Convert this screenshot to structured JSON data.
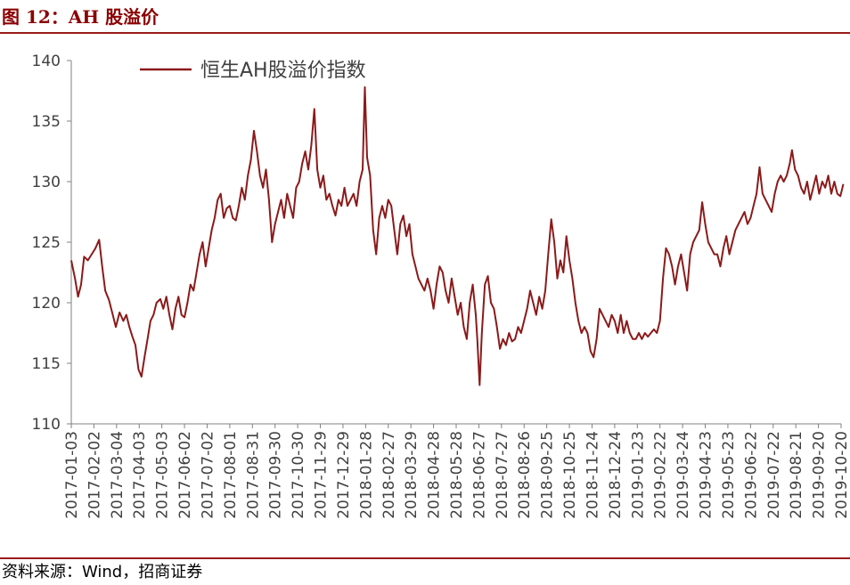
{
  "header": {
    "title": "图 12：AH 股溢价"
  },
  "footer": {
    "source": "资料来源：Wind，招商证券"
  },
  "colors": {
    "line": "#8b1a1a",
    "rule": "#9b1b1b",
    "title": "#8b0000",
    "axis": "#808080"
  },
  "chart_data": {
    "type": "line",
    "title": "",
    "xlabel": "",
    "ylabel": "",
    "ylim": [
      110,
      140
    ],
    "yticks": [
      110,
      115,
      120,
      125,
      130,
      135,
      140
    ],
    "grid": false,
    "legend": "top",
    "xticks": [
      "2017-01-03",
      "2017-02-02",
      "2017-03-04",
      "2017-04-03",
      "2017-05-03",
      "2017-06-02",
      "2017-07-02",
      "2017-08-01",
      "2017-08-31",
      "2017-09-30",
      "2017-10-30",
      "2017-11-29",
      "2017-12-29",
      "2018-01-28",
      "2018-02-27",
      "2018-03-29",
      "2018-04-28",
      "2018-05-28",
      "2018-06-27",
      "2018-07-27",
      "2018-08-26",
      "2018-09-25",
      "2018-10-25",
      "2018-11-24",
      "2018-12-24",
      "2019-01-23",
      "2019-02-22",
      "2019-03-24",
      "2019-04-23",
      "2019-05-23",
      "2019-06-22",
      "2019-07-22",
      "2019-08-21",
      "2019-09-20",
      "2019-10-20"
    ],
    "series": [
      {
        "name": "恒生AH股溢价指数",
        "points": [
          [
            "2017-01-03",
            123.5
          ],
          [
            "2017-01-08",
            122.0
          ],
          [
            "2017-01-12",
            120.5
          ],
          [
            "2017-01-16",
            121.5
          ],
          [
            "2017-01-20",
            123.8
          ],
          [
            "2017-01-25",
            123.5
          ],
          [
            "2017-01-30",
            124.0
          ],
          [
            "2017-02-04",
            124.5
          ],
          [
            "2017-02-09",
            125.2
          ],
          [
            "2017-02-13",
            123.0
          ],
          [
            "2017-02-17",
            121.0
          ],
          [
            "2017-02-22",
            120.2
          ],
          [
            "2017-02-27",
            119.0
          ],
          [
            "2017-03-03",
            118.0
          ],
          [
            "2017-03-08",
            119.2
          ],
          [
            "2017-03-13",
            118.5
          ],
          [
            "2017-03-17",
            119.0
          ],
          [
            "2017-03-21",
            118.0
          ],
          [
            "2017-03-25",
            117.2
          ],
          [
            "2017-03-29",
            116.5
          ],
          [
            "2017-04-02",
            114.5
          ],
          [
            "2017-04-06",
            113.9
          ],
          [
            "2017-04-10",
            115.5
          ],
          [
            "2017-04-14",
            117.0
          ],
          [
            "2017-04-18",
            118.5
          ],
          [
            "2017-04-22",
            119.0
          ],
          [
            "2017-04-26",
            120.0
          ],
          [
            "2017-05-01",
            120.3
          ],
          [
            "2017-05-05",
            119.5
          ],
          [
            "2017-05-09",
            120.5
          ],
          [
            "2017-05-13",
            119.0
          ],
          [
            "2017-05-17",
            117.8
          ],
          [
            "2017-05-21",
            119.5
          ],
          [
            "2017-05-25",
            120.5
          ],
          [
            "2017-05-29",
            119.0
          ],
          [
            "2017-06-02",
            118.8
          ],
          [
            "2017-06-06",
            120.0
          ],
          [
            "2017-06-10",
            121.5
          ],
          [
            "2017-06-14",
            121.0
          ],
          [
            "2017-06-18",
            122.5
          ],
          [
            "2017-06-22",
            124.0
          ],
          [
            "2017-06-26",
            125.0
          ],
          [
            "2017-06-30",
            123.0
          ],
          [
            "2017-07-04",
            124.5
          ],
          [
            "2017-07-08",
            126.0
          ],
          [
            "2017-07-12",
            127.0
          ],
          [
            "2017-07-16",
            128.5
          ],
          [
            "2017-07-20",
            129.0
          ],
          [
            "2017-07-24",
            127.0
          ],
          [
            "2017-07-28",
            127.8
          ],
          [
            "2017-08-01",
            128.0
          ],
          [
            "2017-08-05",
            127.0
          ],
          [
            "2017-08-09",
            126.8
          ],
          [
            "2017-08-13",
            128.0
          ],
          [
            "2017-08-17",
            129.5
          ],
          [
            "2017-08-21",
            128.5
          ],
          [
            "2017-08-25",
            130.5
          ],
          [
            "2017-08-29",
            131.8
          ],
          [
            "2017-09-02",
            134.2
          ],
          [
            "2017-09-06",
            132.5
          ],
          [
            "2017-09-10",
            130.5
          ],
          [
            "2017-09-14",
            129.5
          ],
          [
            "2017-09-18",
            131.0
          ],
          [
            "2017-09-22",
            128.5
          ],
          [
            "2017-09-26",
            125.0
          ],
          [
            "2017-09-30",
            126.5
          ],
          [
            "2017-10-04",
            127.5
          ],
          [
            "2017-10-08",
            128.5
          ],
          [
            "2017-10-12",
            127.0
          ],
          [
            "2017-10-16",
            129.0
          ],
          [
            "2017-10-20",
            128.0
          ],
          [
            "2017-10-24",
            127.0
          ],
          [
            "2017-10-28",
            129.5
          ],
          [
            "2017-11-01",
            130.0
          ],
          [
            "2017-11-05",
            131.5
          ],
          [
            "2017-11-09",
            132.5
          ],
          [
            "2017-11-13",
            131.0
          ],
          [
            "2017-11-17",
            133.0
          ],
          [
            "2017-11-21",
            136.0
          ],
          [
            "2017-11-25",
            131.0
          ],
          [
            "2017-11-29",
            129.5
          ],
          [
            "2017-12-03",
            130.5
          ],
          [
            "2017-12-07",
            128.5
          ],
          [
            "2017-12-11",
            129.0
          ],
          [
            "2017-12-15",
            128.0
          ],
          [
            "2017-12-19",
            127.2
          ],
          [
            "2017-12-23",
            128.5
          ],
          [
            "2017-12-27",
            128.0
          ],
          [
            "2017-12-31",
            129.5
          ],
          [
            "2018-01-04",
            128.0
          ],
          [
            "2018-01-08",
            128.5
          ],
          [
            "2018-01-12",
            129.0
          ],
          [
            "2018-01-16",
            128.0
          ],
          [
            "2018-01-20",
            130.0
          ],
          [
            "2018-01-24",
            131.0
          ],
          [
            "2018-01-27",
            137.8
          ],
          [
            "2018-01-30",
            132.0
          ],
          [
            "2018-02-03",
            130.5
          ],
          [
            "2018-02-07",
            126.0
          ],
          [
            "2018-02-11",
            124.0
          ],
          [
            "2018-02-15",
            127.0
          ],
          [
            "2018-02-19",
            128.0
          ],
          [
            "2018-02-23",
            127.0
          ],
          [
            "2018-02-27",
            128.5
          ],
          [
            "2018-03-03",
            128.0
          ],
          [
            "2018-03-07",
            126.0
          ],
          [
            "2018-03-11",
            124.0
          ],
          [
            "2018-03-15",
            126.5
          ],
          [
            "2018-03-19",
            127.2
          ],
          [
            "2018-03-23",
            125.5
          ],
          [
            "2018-03-27",
            126.5
          ],
          [
            "2018-03-31",
            124.0
          ],
          [
            "2018-04-04",
            123.0
          ],
          [
            "2018-04-08",
            122.0
          ],
          [
            "2018-04-12",
            121.5
          ],
          [
            "2018-04-16",
            121.0
          ],
          [
            "2018-04-20",
            122.0
          ],
          [
            "2018-04-24",
            121.0
          ],
          [
            "2018-04-28",
            119.5
          ],
          [
            "2018-05-02",
            121.5
          ],
          [
            "2018-05-06",
            123.0
          ],
          [
            "2018-05-10",
            122.5
          ],
          [
            "2018-05-14",
            121.0
          ],
          [
            "2018-05-18",
            120.0
          ],
          [
            "2018-05-22",
            122.0
          ],
          [
            "2018-05-26",
            120.5
          ],
          [
            "2018-05-30",
            119.0
          ],
          [
            "2018-06-03",
            120.0
          ],
          [
            "2018-06-07",
            118.0
          ],
          [
            "2018-06-11",
            117.0
          ],
          [
            "2018-06-15",
            120.0
          ],
          [
            "2018-06-19",
            121.5
          ],
          [
            "2018-06-23",
            119.0
          ],
          [
            "2018-06-25",
            117.0
          ],
          [
            "2018-06-28",
            113.2
          ],
          [
            "2018-07-01",
            117.5
          ],
          [
            "2018-07-05",
            121.5
          ],
          [
            "2018-07-09",
            122.2
          ],
          [
            "2018-07-13",
            120.0
          ],
          [
            "2018-07-17",
            119.5
          ],
          [
            "2018-07-21",
            118.0
          ],
          [
            "2018-07-25",
            116.2
          ],
          [
            "2018-07-29",
            117.0
          ],
          [
            "2018-08-02",
            116.5
          ],
          [
            "2018-08-06",
            117.5
          ],
          [
            "2018-08-10",
            116.8
          ],
          [
            "2018-08-14",
            117.0
          ],
          [
            "2018-08-18",
            118.0
          ],
          [
            "2018-08-22",
            117.5
          ],
          [
            "2018-08-26",
            118.5
          ],
          [
            "2018-08-30",
            119.5
          ],
          [
            "2018-09-03",
            121.0
          ],
          [
            "2018-09-07",
            120.0
          ],
          [
            "2018-09-11",
            119.0
          ],
          [
            "2018-09-15",
            120.5
          ],
          [
            "2018-09-19",
            119.5
          ],
          [
            "2018-09-23",
            121.0
          ],
          [
            "2018-09-27",
            124.0
          ],
          [
            "2018-10-01",
            126.9
          ],
          [
            "2018-10-05",
            125.0
          ],
          [
            "2018-10-09",
            122.0
          ],
          [
            "2018-10-13",
            123.5
          ],
          [
            "2018-10-17",
            122.5
          ],
          [
            "2018-10-21",
            125.5
          ],
          [
            "2018-10-25",
            123.5
          ],
          [
            "2018-10-29",
            122.0
          ],
          [
            "2018-11-02",
            120.0
          ],
          [
            "2018-11-06",
            118.5
          ],
          [
            "2018-11-10",
            117.5
          ],
          [
            "2018-11-14",
            118.0
          ],
          [
            "2018-11-18",
            117.5
          ],
          [
            "2018-11-22",
            116.0
          ],
          [
            "2018-11-26",
            115.5
          ],
          [
            "2018-11-30",
            117.0
          ],
          [
            "2018-12-04",
            119.5
          ],
          [
            "2018-12-08",
            119.0
          ],
          [
            "2018-12-12",
            118.5
          ],
          [
            "2018-12-16",
            118.0
          ],
          [
            "2018-12-20",
            119.0
          ],
          [
            "2018-12-24",
            118.5
          ],
          [
            "2018-12-28",
            117.5
          ],
          [
            "2019-01-01",
            119.0
          ],
          [
            "2019-01-05",
            117.5
          ],
          [
            "2019-01-09",
            118.5
          ],
          [
            "2019-01-13",
            117.5
          ],
          [
            "2019-01-17",
            117.0
          ],
          [
            "2019-01-21",
            117.0
          ],
          [
            "2019-01-25",
            117.5
          ],
          [
            "2019-01-29",
            117.0
          ],
          [
            "2019-02-02",
            117.5
          ],
          [
            "2019-02-06",
            117.2
          ],
          [
            "2019-02-10",
            117.5
          ],
          [
            "2019-02-14",
            117.8
          ],
          [
            "2019-02-18",
            117.5
          ],
          [
            "2019-02-22",
            118.5
          ],
          [
            "2019-02-26",
            122.0
          ],
          [
            "2019-03-02",
            124.5
          ],
          [
            "2019-03-06",
            124.0
          ],
          [
            "2019-03-10",
            123.0
          ],
          [
            "2019-03-14",
            121.5
          ],
          [
            "2019-03-18",
            123.0
          ],
          [
            "2019-03-22",
            124.0
          ],
          [
            "2019-03-26",
            122.5
          ],
          [
            "2019-03-30",
            121.0
          ],
          [
            "2019-04-03",
            124.0
          ],
          [
            "2019-04-07",
            125.0
          ],
          [
            "2019-04-11",
            125.5
          ],
          [
            "2019-04-15",
            126.0
          ],
          [
            "2019-04-19",
            128.3
          ],
          [
            "2019-04-23",
            126.5
          ],
          [
            "2019-04-27",
            125.0
          ],
          [
            "2019-05-01",
            124.5
          ],
          [
            "2019-05-05",
            124.0
          ],
          [
            "2019-05-09",
            124.0
          ],
          [
            "2019-05-13",
            123.0
          ],
          [
            "2019-05-17",
            124.5
          ],
          [
            "2019-05-21",
            125.5
          ],
          [
            "2019-05-25",
            124.0
          ],
          [
            "2019-05-29",
            125.0
          ],
          [
            "2019-06-02",
            126.0
          ],
          [
            "2019-06-06",
            126.5
          ],
          [
            "2019-06-10",
            127.0
          ],
          [
            "2019-06-14",
            127.5
          ],
          [
            "2019-06-18",
            126.5
          ],
          [
            "2019-06-22",
            127.0
          ],
          [
            "2019-06-26",
            128.0
          ],
          [
            "2019-06-30",
            129.0
          ],
          [
            "2019-07-04",
            131.2
          ],
          [
            "2019-07-08",
            129.0
          ],
          [
            "2019-07-12",
            128.5
          ],
          [
            "2019-07-16",
            128.0
          ],
          [
            "2019-07-20",
            127.5
          ],
          [
            "2019-07-24",
            129.0
          ],
          [
            "2019-07-28",
            130.0
          ],
          [
            "2019-08-01",
            130.5
          ],
          [
            "2019-08-05",
            130.0
          ],
          [
            "2019-08-09",
            130.5
          ],
          [
            "2019-08-13",
            131.5
          ],
          [
            "2019-08-16",
            132.6
          ],
          [
            "2019-08-20",
            131.0
          ],
          [
            "2019-08-24",
            130.5
          ],
          [
            "2019-08-28",
            129.5
          ],
          [
            "2019-09-01",
            129.0
          ],
          [
            "2019-09-05",
            130.0
          ],
          [
            "2019-09-09",
            128.5
          ],
          [
            "2019-09-13",
            129.5
          ],
          [
            "2019-09-17",
            130.5
          ],
          [
            "2019-09-21",
            129.0
          ],
          [
            "2019-09-25",
            130.0
          ],
          [
            "2019-09-29",
            129.5
          ],
          [
            "2019-10-03",
            130.5
          ],
          [
            "2019-10-07",
            129.0
          ],
          [
            "2019-10-11",
            130.0
          ],
          [
            "2019-10-15",
            129.0
          ],
          [
            "2019-10-19",
            128.8
          ],
          [
            "2019-10-23",
            129.8
          ]
        ]
      }
    ]
  }
}
